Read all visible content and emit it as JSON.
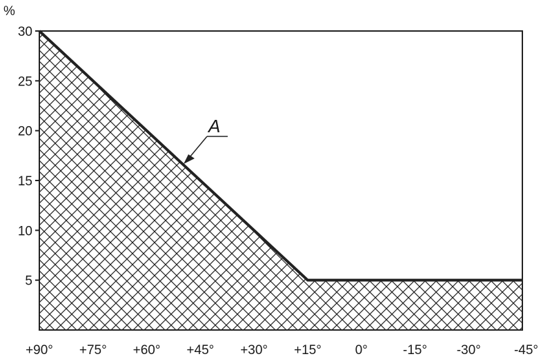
{
  "chart_data": {
    "type": "area",
    "ylabel": "%",
    "xlabel": "",
    "title": "",
    "x_ticks": [
      "+90°",
      "+75°",
      "+60°",
      "+45°",
      "+30°",
      "+15°",
      "0°",
      "-15°",
      "-30°",
      "-45°"
    ],
    "x_tick_values": [
      90,
      75,
      60,
      45,
      30,
      15,
      0,
      -15,
      -30,
      -45
    ],
    "y_ticks": [
      "5",
      "10",
      "15",
      "20",
      "25",
      "30"
    ],
    "y_tick_values": [
      5,
      10,
      15,
      20,
      25,
      30
    ],
    "xlim": [
      90,
      -45
    ],
    "ylim": [
      0,
      30
    ],
    "grid": false,
    "fill": "cross-hatched",
    "series": [
      {
        "x": [
          90,
          15,
          -45
        ],
        "y": [
          30,
          5,
          5
        ]
      }
    ],
    "annotations": [
      {
        "text": "A",
        "points_to_x": 45,
        "points_to_y": 16.7
      }
    ]
  }
}
